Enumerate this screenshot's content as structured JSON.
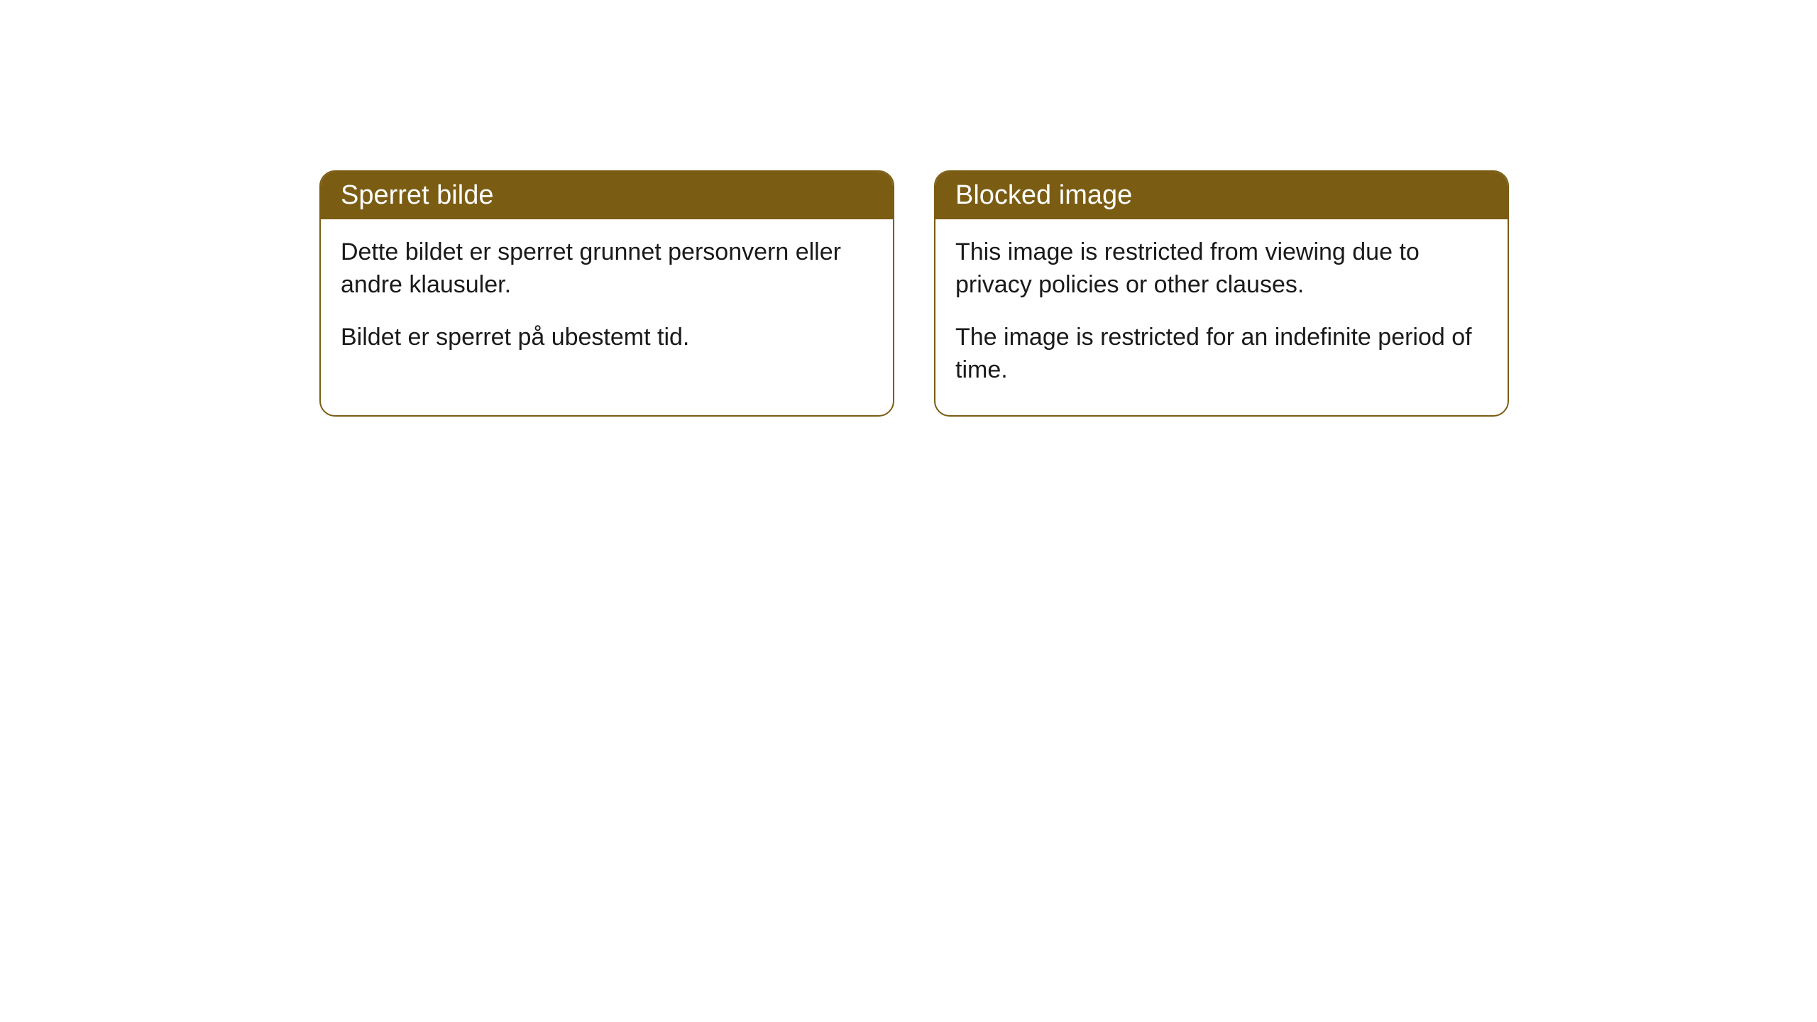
{
  "cards": [
    {
      "title": "Sperret bilde",
      "paragraph1": "Dette bildet er sperret grunnet personvern eller andre klausuler.",
      "paragraph2": "Bildet er sperret på ubestemt tid."
    },
    {
      "title": "Blocked image",
      "paragraph1": "This image is restricted from viewing due to privacy policies or other clauses.",
      "paragraph2": "The image is restricted for an indefinite period of time."
    }
  ],
  "style": {
    "header_bg_color": "#7a5c13",
    "header_text_color": "#ffffff",
    "border_color": "#7a5c13",
    "body_bg_color": "#ffffff",
    "body_text_color": "#1a1a1a",
    "border_radius": 22,
    "title_fontsize": 38,
    "body_fontsize": 34
  }
}
